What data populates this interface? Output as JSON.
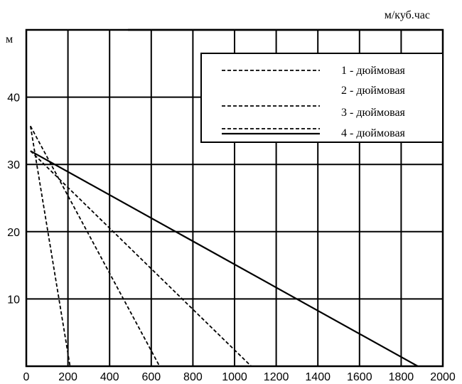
{
  "chart_data": {
    "type": "line",
    "title": "",
    "xlabel": "м/куб.час",
    "ylabel": "м",
    "xlim": [
      0,
      2000
    ],
    "ylim": [
      0,
      50
    ],
    "x_ticks": [
      "0",
      "200",
      "400",
      "600",
      "800",
      "1000",
      "1200",
      "1400",
      "1600",
      "1800",
      "2000"
    ],
    "y_ticks": [
      "10",
      "20",
      "30",
      "40"
    ],
    "grid": true,
    "legend_position": "top-right",
    "legend": [
      "1 - дюймовая",
      "2 - дюймовая",
      "3 - дюймовая",
      "4 - дюймовая"
    ],
    "series": [
      {
        "name": "1 - дюймовая",
        "style": "dashed",
        "points": [
          [
            20,
            35.7
          ],
          [
            210,
            0
          ]
        ]
      },
      {
        "name": "2 - дюймовая",
        "style": "dashed",
        "points": [
          [
            20,
            35.7
          ],
          [
            640,
            0
          ]
        ]
      },
      {
        "name": "3 - дюймовая",
        "style": "dashed",
        "points": [
          [
            20,
            32
          ],
          [
            1080,
            0
          ]
        ]
      },
      {
        "name": "4 - дюймовая",
        "style": "solid",
        "points": [
          [
            20,
            32
          ],
          [
            1880,
            0
          ]
        ]
      }
    ]
  }
}
